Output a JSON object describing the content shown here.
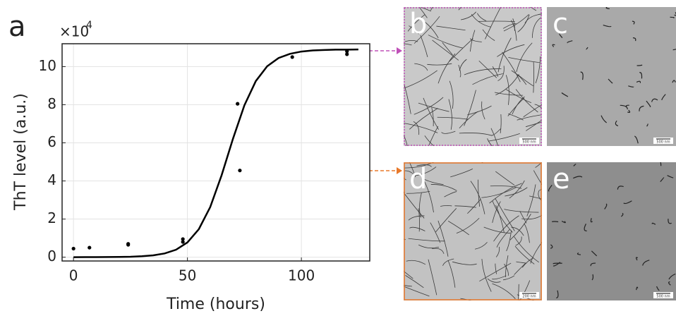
{
  "chart_data": {
    "type": "scatter",
    "panel_label": "a",
    "x_label": "Time (hours)",
    "y_label": "ThT level (a.u.)",
    "y_multiplier": "×10",
    "y_multiplier_exponent": "4",
    "xlim": [
      -5,
      130
    ],
    "xticks": [
      0,
      50,
      100
    ],
    "ylim": [
      -0.2,
      11.2
    ],
    "yticks": [
      0,
      2,
      4,
      6,
      8,
      10
    ],
    "grid": true,
    "series": [
      {
        "type": "scatter",
        "color": "#000000",
        "x": [
          0,
          7,
          24,
          24,
          48,
          48,
          72,
          73,
          96,
          120,
          120
        ],
        "values": [
          0.45,
          0.5,
          0.7,
          0.65,
          0.8,
          0.95,
          8.05,
          4.55,
          10.5,
          10.65,
          10.8
        ]
      },
      {
        "type": "line",
        "color": "#000000",
        "x": [
          0,
          5,
          10,
          15,
          20,
          25,
          30,
          35,
          40,
          45,
          50,
          55,
          60,
          65,
          70,
          75,
          80,
          85,
          90,
          95,
          100,
          105,
          110,
          115,
          120,
          125
        ],
        "values": [
          0.0,
          0.0013,
          0.003,
          0.006,
          0.011,
          0.023,
          0.048,
          0.097,
          0.196,
          0.392,
          0.773,
          1.47,
          2.63,
          4.3,
          6.22,
          7.97,
          9.24,
          10.02,
          10.45,
          10.67,
          10.79,
          10.85,
          10.87,
          10.89,
          10.89,
          10.9
        ]
      }
    ]
  },
  "panels": [
    {
      "label": "b",
      "scale_bar": "500 nm"
    },
    {
      "label": "c",
      "scale_bar": "500 nm"
    },
    {
      "label": "d",
      "scale_bar": "200 nm"
    },
    {
      "label": "e",
      "scale_bar": "500 nm"
    }
  ]
}
